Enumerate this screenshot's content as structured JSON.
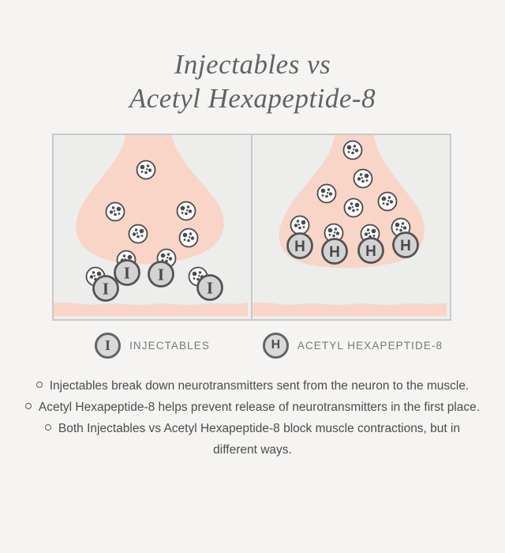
{
  "title": {
    "line1": "Injectables vs",
    "line2": "Acetyl Hexapeptide-8"
  },
  "colors": {
    "page_bg": "#f5f4f2",
    "panel_bg": "#ededec",
    "panel_border": "#c9c9c9",
    "neuron_pink": "#f8d5c7",
    "vesicle_fill": "#fbfbfb",
    "vesicle_stroke": "#4b4b4b",
    "vesicle_dot": "#4b4b4b",
    "marker_fill": "#d3d3d3",
    "marker_stroke": "#545454",
    "marker_letter": "#494949",
    "title_text": "#626262",
    "body_text": "#4c4c4c",
    "legend_text": "#787878"
  },
  "legend": [
    {
      "symbol": "I",
      "label": "INJECTABLES"
    },
    {
      "symbol": "H",
      "label": "ACETYL HEXAPEPTIDE-8"
    }
  ],
  "bullets": [
    "Injectables break down neurotransmitters sent from the neuron to the muscle.",
    "Acetyl Hexapeptide-8 helps prevent release of neurotransmitters in the first place.",
    "Both Injectables vs Acetyl Hexapeptide-8 block muscle contractions, but in different ways."
  ],
  "diagram": {
    "panels": [
      {
        "id": "injectables",
        "marker_symbol": "I",
        "vesicles": [
          [
            117,
            44
          ],
          [
            78,
            97
          ],
          [
            168,
            96
          ],
          [
            107,
            125
          ],
          [
            171,
            130
          ],
          [
            92,
            158
          ],
          [
            143,
            156
          ],
          [
            53,
            179
          ],
          [
            183,
            179
          ]
        ],
        "markers": [
          [
            93,
            174
          ],
          [
            136,
            176
          ],
          [
            66,
            194
          ],
          [
            198,
            193
          ]
        ]
      },
      {
        "id": "acetyl-hexapeptide-8",
        "marker_symbol": "H",
        "vesicles": [
          [
            127,
            19
          ],
          [
            140,
            55
          ],
          [
            94,
            74
          ],
          [
            128,
            92
          ],
          [
            171,
            84
          ],
          [
            60,
            114
          ],
          [
            103,
            124
          ],
          [
            149,
            125
          ],
          [
            188,
            117
          ]
        ],
        "markers": [
          [
            60,
            140
          ],
          [
            104,
            147
          ],
          [
            150,
            146
          ],
          [
            194,
            139
          ]
        ]
      }
    ]
  }
}
